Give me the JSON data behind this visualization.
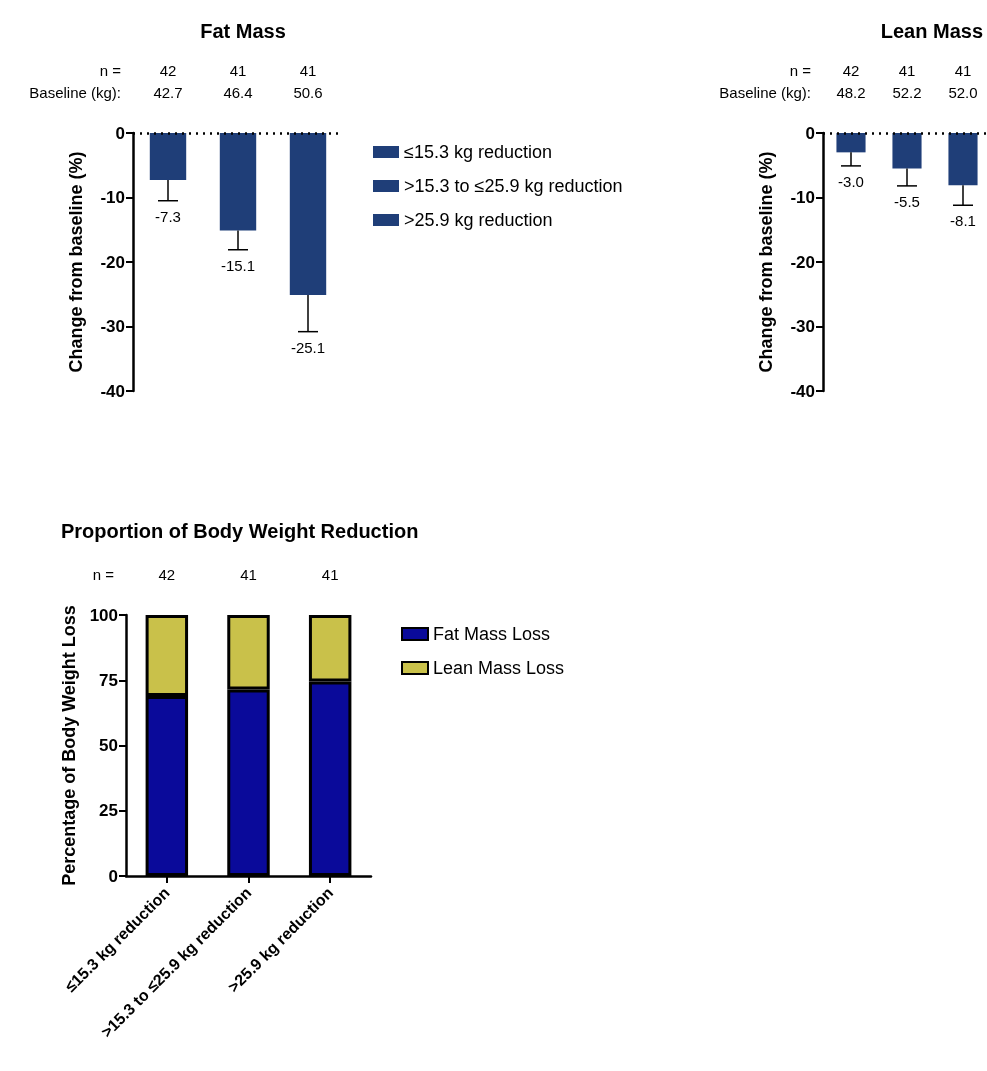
{
  "chart_data": [
    {
      "type": "bar",
      "title": "Fat Mass",
      "ylabel": "Change from baseline (%)",
      "categories": [
        null,
        null,
        null
      ],
      "series": [
        {
          "name": "≤15.3 kg reduction",
          "color": "#1f3e78",
          "values": [
            -7.3,
            null,
            null
          ],
          "errors": [
            [
              -10.5,
              -7.3
            ],
            null,
            null
          ],
          "value_labels": [
            "-7.3",
            null,
            null
          ]
        },
        {
          "name": ">15.3 to ≤25.9 kg reduction",
          "color": "#1f3e78",
          "values": [
            null,
            -15.1,
            null
          ],
          "errors": [
            null,
            [
              -18.1,
              -15.1
            ],
            null
          ],
          "value_labels": [
            null,
            "-15.1",
            null
          ]
        },
        {
          "name": ">25.9 kg reduction",
          "color": "#1f3e78",
          "values": [
            null,
            null,
            -25.1
          ],
          "errors": [
            null,
            null,
            [
              -30.8,
              -25.1
            ]
          ],
          "value_labels": [
            null,
            null,
            "-25.1"
          ]
        }
      ],
      "annotations": [
        "n =",
        "42",
        "41",
        "41",
        "Baseline (kg):",
        "42.7",
        "46.4",
        "50.6"
      ],
      "ylim": [
        -40,
        0
      ],
      "yticks": [
        -40,
        -30,
        -20,
        -10,
        0
      ],
      "ref_lines": [
        {
          "axis": "y",
          "value": 0,
          "line_style": "dotted"
        }
      ],
      "grid": false,
      "legend": "top right",
      "tick_labels": "y"
    },
    {
      "type": "bar",
      "title": "Lean Mass",
      "ylabel": "Change from baseline (%)",
      "categories": [
        null,
        null,
        null
      ],
      "color": "#1f3e78",
      "values": [
        -3.0,
        -5.5,
        -8.1
      ],
      "errors": [
        [
          -5.1,
          -3.0
        ],
        [
          -8.2,
          -5.5
        ],
        [
          -11.2,
          -8.1
        ]
      ],
      "value_labels": [
        "-3.0",
        "-5.5",
        "-8.1"
      ],
      "annotations": [
        "n =",
        "42",
        "41",
        "41",
        "Baseline (kg):",
        "48.2",
        "52.2",
        "52.0"
      ],
      "ylim": [
        -40,
        0
      ],
      "yticks": [
        -40,
        -30,
        -20,
        -10,
        0
      ],
      "ref_lines": [
        {
          "axis": "y",
          "value": 0,
          "line_style": "dotted"
        }
      ],
      "grid": false,
      "tick_labels": "y"
    },
    {
      "type": "bar",
      "title": "Proportion of Body Weight Reduction",
      "ylabel": "Percentage of Body Weight Loss",
      "stacked": true,
      "categories": [
        "≤15.3 kg reduction",
        ">15.3 to ≤25.9 kg reduction",
        ">25.9 kg reduction"
      ],
      "series": [
        {
          "name": "Fat Mass Loss",
          "color": "#0a0a9a",
          "values": [
            69,
            71.5,
            74.5
          ]
        },
        {
          "name": "Lean Mass Loss",
          "color": "#c9c14a",
          "values": [
            31,
            28.5,
            25.5
          ]
        }
      ],
      "annotations": [
        "n =",
        "42",
        "41",
        "41"
      ],
      "ylim": [
        0,
        100
      ],
      "yticks": [
        0,
        25,
        50,
        75,
        100
      ],
      "grid": false,
      "legend": "top right"
    }
  ]
}
